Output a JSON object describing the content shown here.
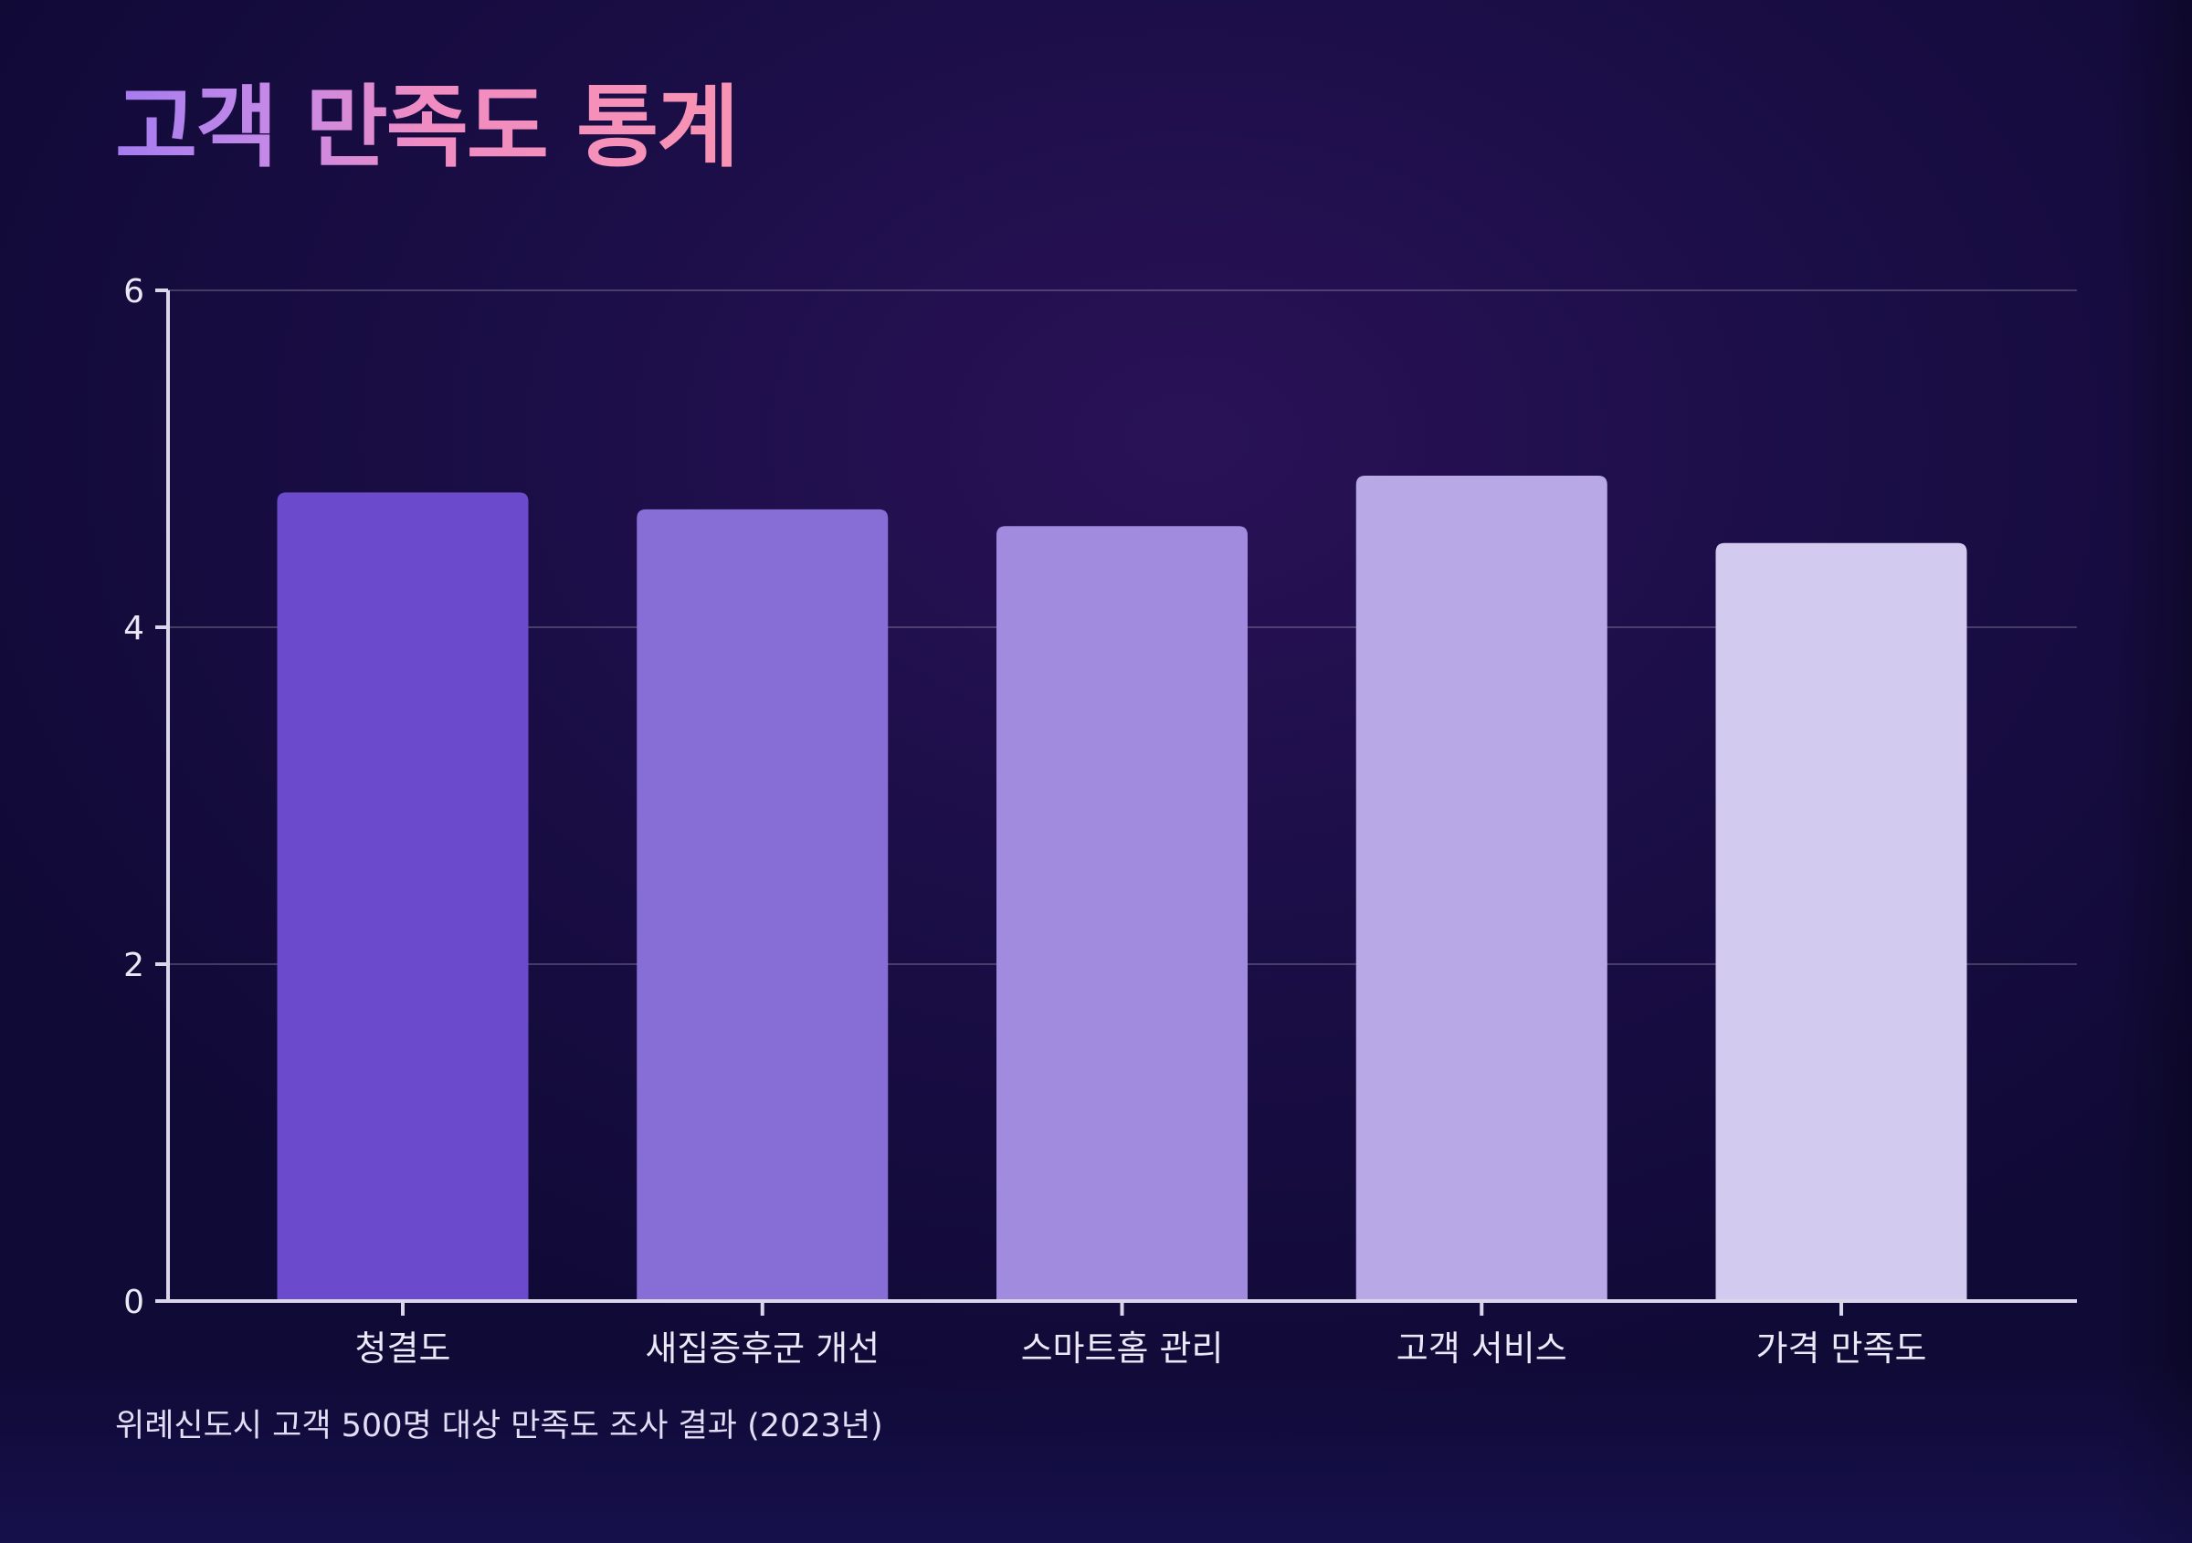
{
  "chart_data": {
    "type": "bar",
    "title": "고객 만족도 통계",
    "caption": "위례신도시 고객 500명 대상 만족도 조사 결과 (2023년)",
    "categories": [
      "청결도",
      "새집증후군 개선",
      "스마트홈 관리",
      "고객 서비스",
      "가격 만족도"
    ],
    "values": [
      4.8,
      4.7,
      4.6,
      4.9,
      4.5
    ],
    "bar_colors": [
      "#6b4bcb",
      "#876dd6",
      "#a18bdf",
      "#b8a9e6",
      "#d3cbef"
    ],
    "ylim": [
      0,
      6
    ],
    "yticks": [
      0,
      2,
      4,
      6
    ],
    "grid": true,
    "xlabel": "",
    "ylabel": ""
  }
}
